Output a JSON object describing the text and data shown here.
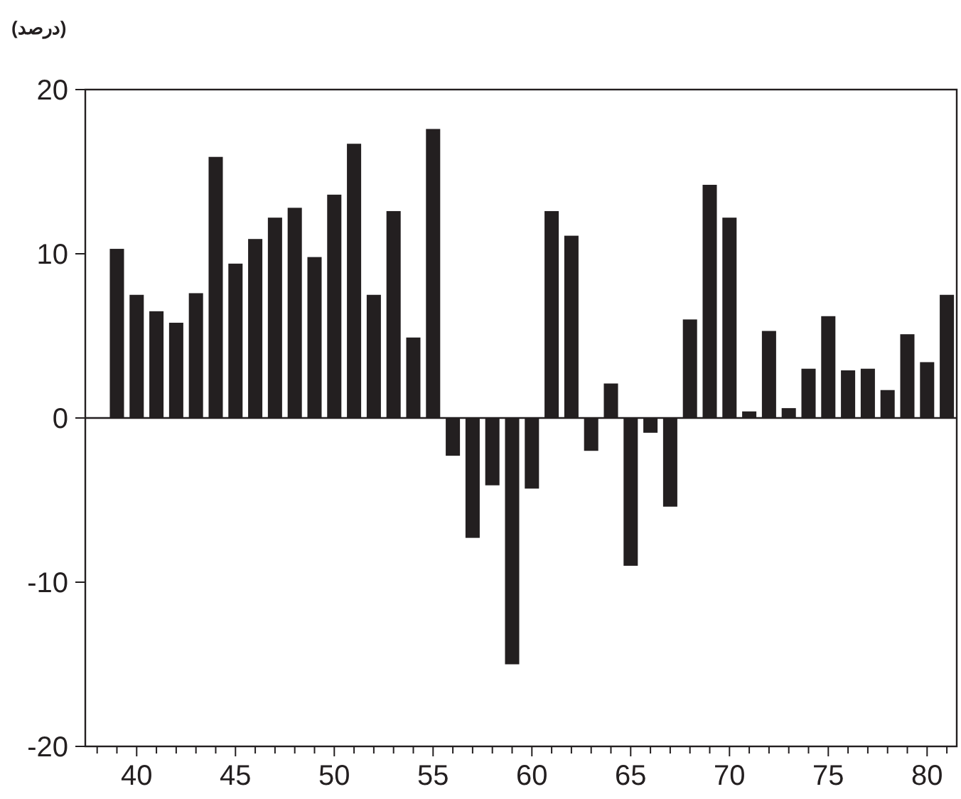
{
  "chart_data": {
    "type": "bar",
    "ylabel": "(درصد)",
    "x": [
      39,
      40,
      41,
      42,
      43,
      44,
      45,
      46,
      47,
      48,
      49,
      50,
      51,
      52,
      53,
      54,
      55,
      56,
      57,
      58,
      59,
      60,
      61,
      62,
      63,
      64,
      65,
      66,
      67,
      68,
      69,
      70,
      71,
      72,
      73,
      74,
      75,
      76,
      77,
      78,
      79,
      80,
      81
    ],
    "values": [
      10.3,
      7.5,
      6.5,
      5.8,
      7.6,
      15.9,
      9.4,
      10.9,
      12.2,
      12.8,
      9.8,
      13.6,
      16.7,
      7.5,
      12.6,
      4.9,
      17.6,
      -2.3,
      -7.3,
      -4.1,
      -15.0,
      -4.3,
      12.6,
      11.1,
      -2.0,
      2.1,
      -9.0,
      -0.9,
      -5.4,
      6.0,
      14.2,
      12.2,
      0.4,
      5.3,
      0.6,
      3.0,
      6.2,
      2.9,
      3.0,
      1.7,
      5.1,
      3.4,
      7.5
    ],
    "color": "#231f20",
    "xlim": [
      37.4,
      81.5
    ],
    "ylim": [
      -20,
      20
    ],
    "xticks": [
      {
        "value": 38,
        "label": null
      },
      {
        "value": 39,
        "label": null
      },
      40,
      {
        "value": 41,
        "label": null
      },
      {
        "value": 42,
        "label": null
      },
      {
        "value": 43,
        "label": null
      },
      {
        "value": 44,
        "label": null
      },
      45,
      {
        "value": 46,
        "label": null
      },
      {
        "value": 47,
        "label": null
      },
      {
        "value": 48,
        "label": null
      },
      {
        "value": 49,
        "label": null
      },
      50,
      {
        "value": 51,
        "label": null
      },
      {
        "value": 52,
        "label": null
      },
      {
        "value": 53,
        "label": null
      },
      {
        "value": 54,
        "label": null
      },
      55,
      {
        "value": 56,
        "label": null
      },
      {
        "value": 57,
        "label": null
      },
      {
        "value": 58,
        "label": null
      },
      {
        "value": 59,
        "label": null
      },
      60,
      {
        "value": 61,
        "label": null
      },
      {
        "value": 62,
        "label": null
      },
      {
        "value": 63,
        "label": null
      },
      {
        "value": 64,
        "label": null
      },
      65,
      {
        "value": 66,
        "label": null
      },
      {
        "value": 67,
        "label": null
      },
      {
        "value": 68,
        "label": null
      },
      {
        "value": 69,
        "label": null
      },
      70,
      {
        "value": 71,
        "label": null
      },
      {
        "value": 72,
        "label": null
      },
      {
        "value": 73,
        "label": null
      },
      {
        "value": 74,
        "label": null
      },
      75,
      {
        "value": 76,
        "label": null
      },
      {
        "value": 77,
        "label": null
      },
      {
        "value": 78,
        "label": null
      },
      {
        "value": 79,
        "label": null
      },
      80,
      {
        "value": 81,
        "label": null
      }
    ],
    "yticks": [
      -20,
      -10,
      0,
      10,
      20
    ],
    "ref_lines": [
      {
        "axis": "y",
        "value": 0,
        "color": "#231f20"
      }
    ],
    "grid": false
  }
}
